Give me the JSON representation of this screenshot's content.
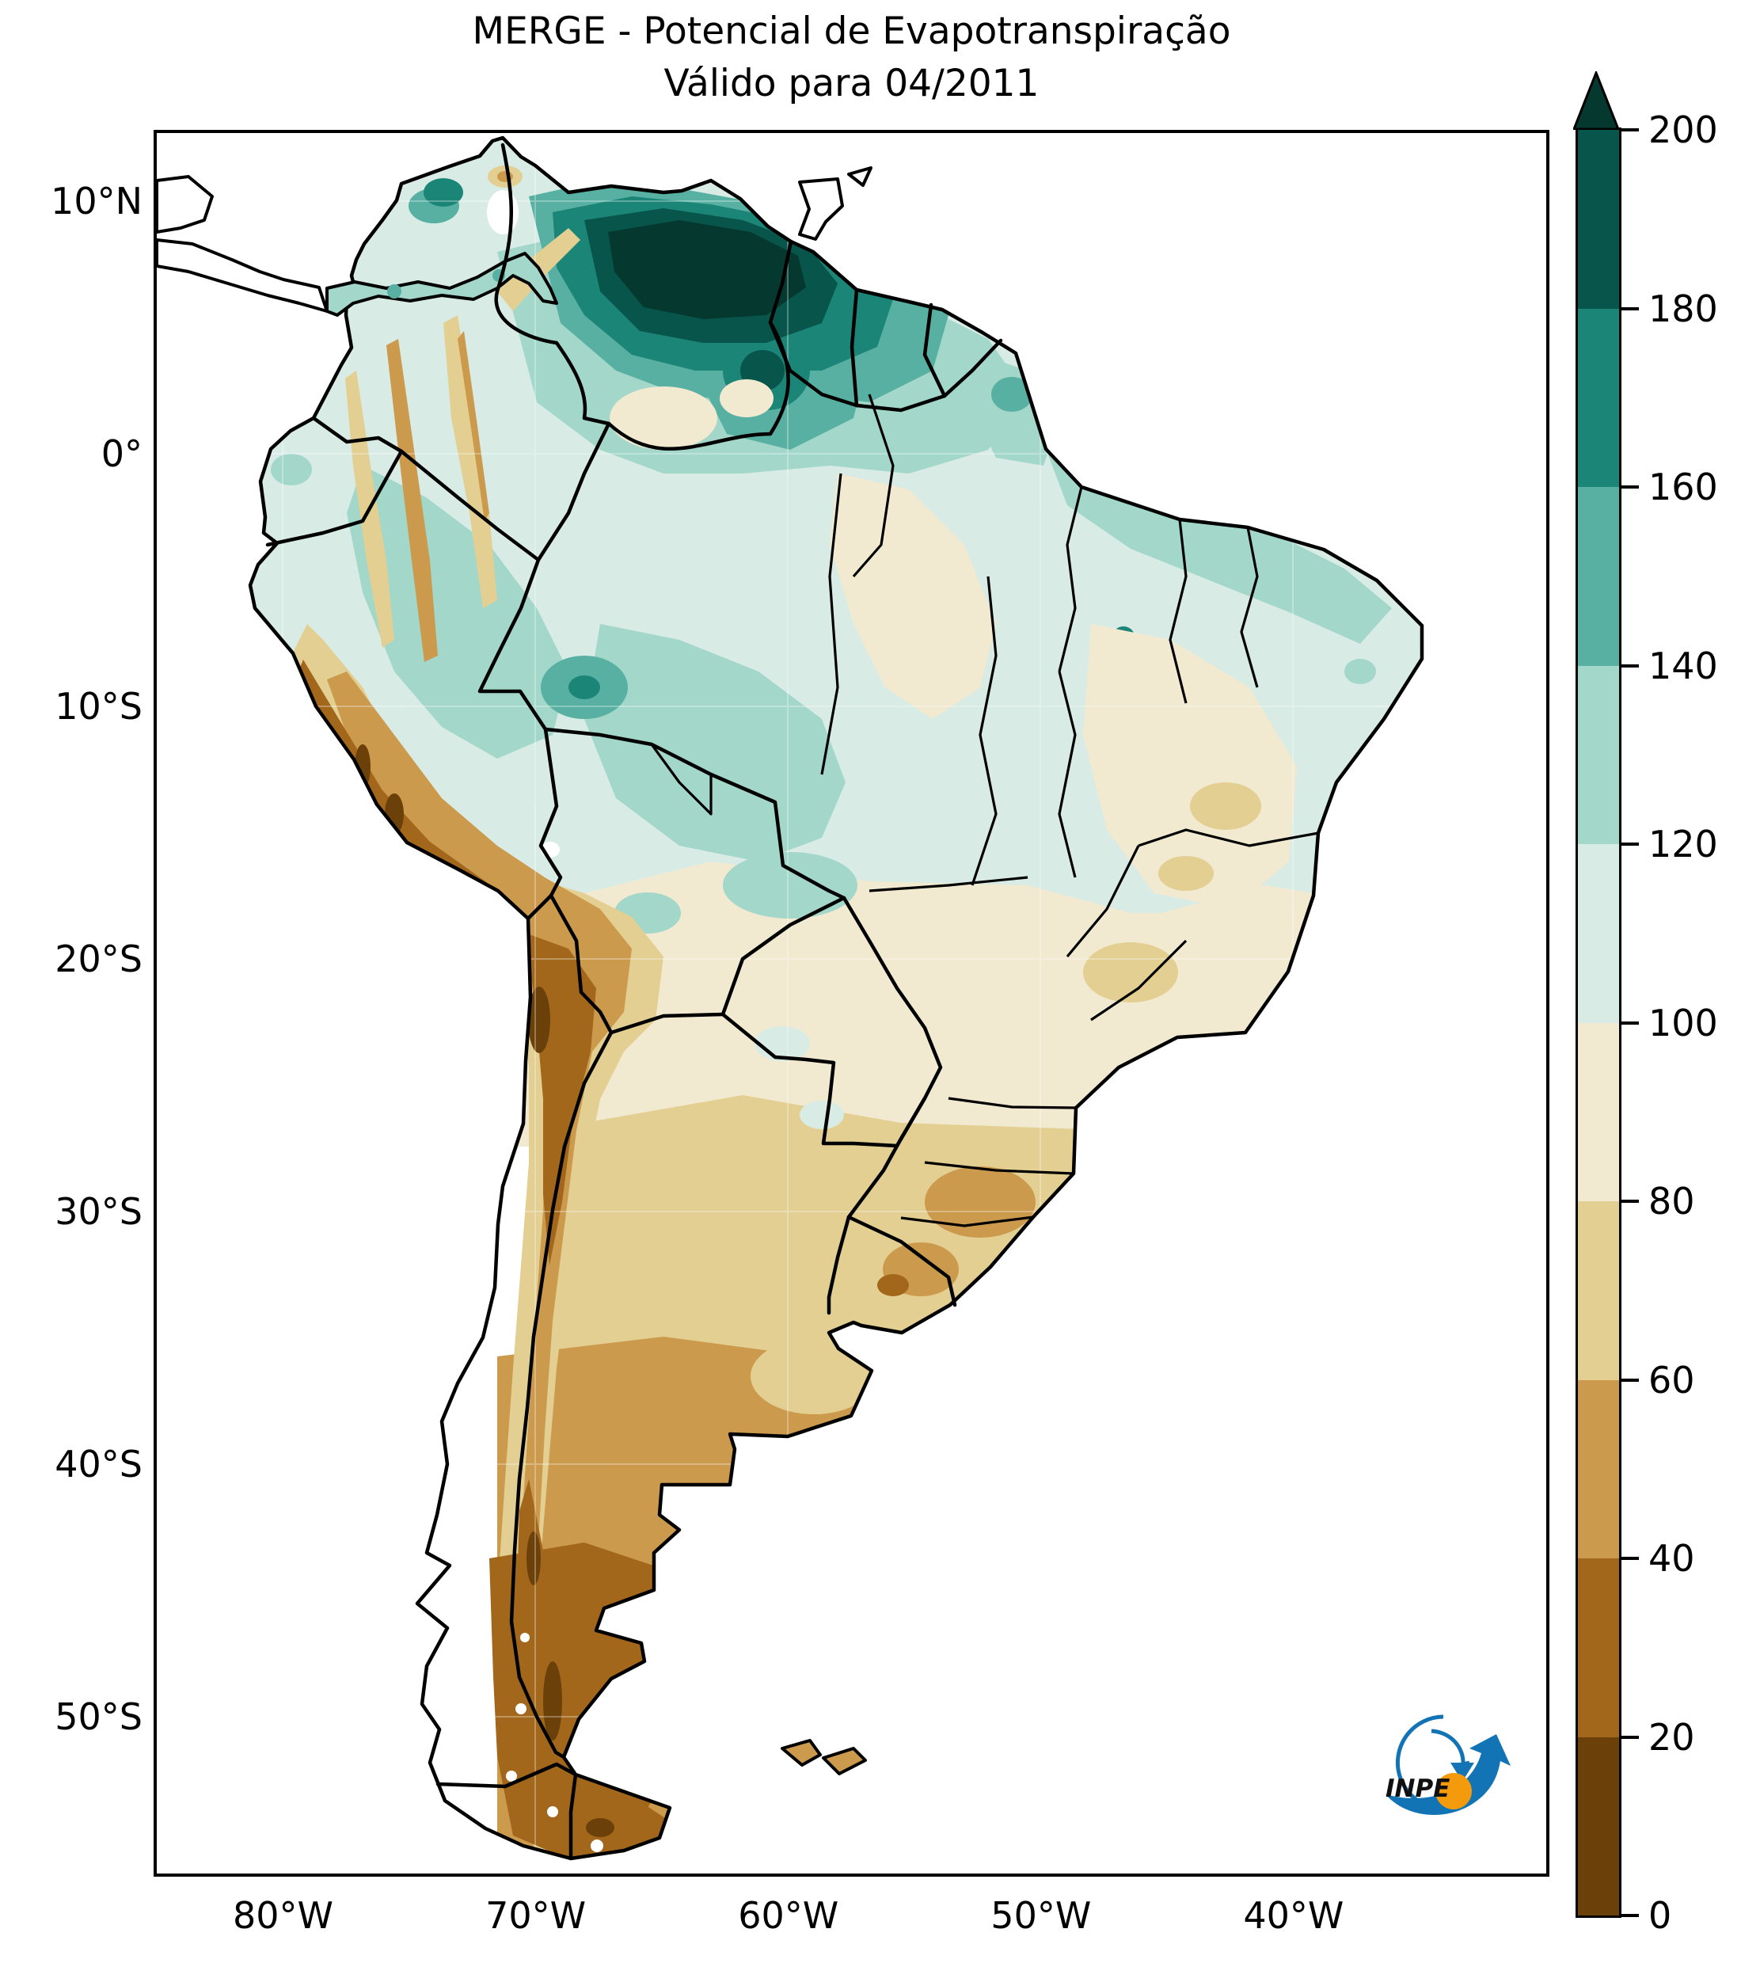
{
  "title": {
    "line1": "MERGE - Potencial de Evapotranspiração",
    "line2": "Válido para 04/2011"
  },
  "axes": {
    "y_ticks": [
      {
        "label": "10°N",
        "value": 10
      },
      {
        "label": "0°",
        "value": 0
      },
      {
        "label": "10°S",
        "value": -10
      },
      {
        "label": "20°S",
        "value": -20
      },
      {
        "label": "30°S",
        "value": -30
      },
      {
        "label": "40°S",
        "value": -40
      },
      {
        "label": "50°S",
        "value": -50
      }
    ],
    "x_ticks": [
      {
        "label": "80°W",
        "value": -80
      },
      {
        "label": "70°W",
        "value": -70
      },
      {
        "label": "60°W",
        "value": -60
      },
      {
        "label": "50°W",
        "value": -50
      },
      {
        "label": "40°W",
        "value": -40
      }
    ]
  },
  "colorbar": {
    "tick_labels": [
      "0",
      "20",
      "40",
      "60",
      "80",
      "100",
      "120",
      "140",
      "160",
      "180",
      "200"
    ],
    "tick_values": [
      0,
      20,
      40,
      60,
      80,
      100,
      120,
      140,
      160,
      180,
      200
    ],
    "min": 0,
    "max": 200,
    "extend": "max",
    "arrow_color": "#05382f",
    "bands": [
      {
        "range": "0-20",
        "color": "#6b4109"
      },
      {
        "range": "20-40",
        "color": "#a2671b"
      },
      {
        "range": "40-60",
        "color": "#cc9a4d"
      },
      {
        "range": "60-80",
        "color": "#e3cf92"
      },
      {
        "range": "80-100",
        "color": "#f2ead0"
      },
      {
        "range": "100-120",
        "color": "#d8ebe4"
      },
      {
        "range": "120-140",
        "color": "#a2d7c9"
      },
      {
        "range": "140-160",
        "color": "#58b0a2"
      },
      {
        "range": "160-180",
        "color": "#1b8578"
      },
      {
        "range": "180-200",
        "color": "#07554b"
      }
    ]
  },
  "logo": {
    "text": "INPE",
    "blue": "#1273b5",
    "orange": "#f39a0d"
  },
  "chart_data": {
    "type": "heatmap",
    "title": "MERGE - Potencial de Evapotranspiração",
    "subtitle": "Válido para 04/2011",
    "variable": "Potencial de Evapotranspiração",
    "product": "MERGE",
    "valid_for": "04/2011",
    "extent": {
      "lon_min": -85,
      "lon_max": -30,
      "lat_min": -56.2,
      "lat_max": 12.7
    },
    "grid": "off",
    "legend_position": "right-colorbar",
    "colorbar_range": [
      0,
      200
    ],
    "colorbar_step": 20,
    "notable_features": [
      {
        "region": "Northern Venezuela / Orinoco basin",
        "value_range": "180 to >200"
      },
      {
        "region": "Guyana highlands near Roraima border",
        "value_range": "160-200"
      },
      {
        "region": "Amazon basin (broad area)",
        "value_range": "100-140"
      },
      {
        "region": "Coastal strip of the Guianas and NE Brazil",
        "value_range": "120-140"
      },
      {
        "region": "Andes cordillera from Colombia to Chile",
        "value_range": "20-80"
      },
      {
        "region": "Central-eastern Brazil (cerrado)",
        "value_range": "80-100"
      },
      {
        "region": "Southern Brazil / Uruguay",
        "value_range": "60-80"
      },
      {
        "region": "Central Argentina",
        "value_range": "40-60"
      },
      {
        "region": "Patagonia and southern Chile",
        "value_range": "0-40"
      },
      {
        "region": "Far-southern Chile fjords",
        "value_range": "no data (white)"
      }
    ]
  }
}
